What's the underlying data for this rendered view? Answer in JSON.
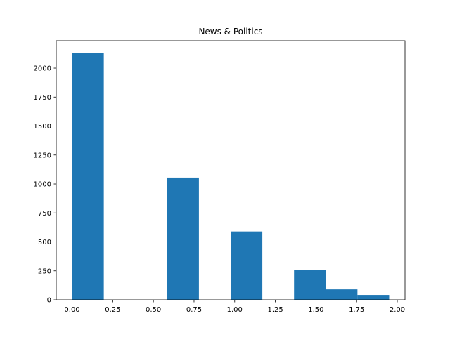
{
  "chart_data": {
    "type": "bar",
    "title": "News & Politics",
    "xlabel": "",
    "ylabel": "",
    "xlim": [
      -0.0975,
      2.0475
    ],
    "ylim": [
      0,
      2236.5
    ],
    "bar_color": "#1f77b4",
    "bins": [
      {
        "x0": 0.0,
        "x1": 0.195,
        "value": 2130
      },
      {
        "x0": 0.195,
        "x1": 0.39,
        "value": 0
      },
      {
        "x0": 0.39,
        "x1": 0.585,
        "value": 0
      },
      {
        "x0": 0.585,
        "x1": 0.78,
        "value": 1055
      },
      {
        "x0": 0.78,
        "x1": 0.975,
        "value": 0
      },
      {
        "x0": 0.975,
        "x1": 1.17,
        "value": 590
      },
      {
        "x0": 1.17,
        "x1": 1.365,
        "value": 0
      },
      {
        "x0": 1.365,
        "x1": 1.56,
        "value": 255
      },
      {
        "x0": 1.56,
        "x1": 1.755,
        "value": 90
      },
      {
        "x0": 1.755,
        "x1": 1.95,
        "value": 42
      }
    ],
    "x_ticks": [
      {
        "value": 0.0,
        "label": "0.00"
      },
      {
        "value": 0.25,
        "label": "0.25"
      },
      {
        "value": 0.5,
        "label": "0.50"
      },
      {
        "value": 0.75,
        "label": "0.75"
      },
      {
        "value": 1.0,
        "label": "1.00"
      },
      {
        "value": 1.25,
        "label": "1.25"
      },
      {
        "value": 1.5,
        "label": "1.50"
      },
      {
        "value": 1.75,
        "label": "1.75"
      },
      {
        "value": 2.0,
        "label": "2.00"
      }
    ],
    "y_ticks": [
      {
        "value": 0,
        "label": "0"
      },
      {
        "value": 250,
        "label": "250"
      },
      {
        "value": 500,
        "label": "500"
      },
      {
        "value": 750,
        "label": "750"
      },
      {
        "value": 1000,
        "label": "1000"
      },
      {
        "value": 1250,
        "label": "1250"
      },
      {
        "value": 1500,
        "label": "1500"
      },
      {
        "value": 1750,
        "label": "1750"
      },
      {
        "value": 2000,
        "label": "2000"
      }
    ],
    "grid": false,
    "legend": "none"
  }
}
